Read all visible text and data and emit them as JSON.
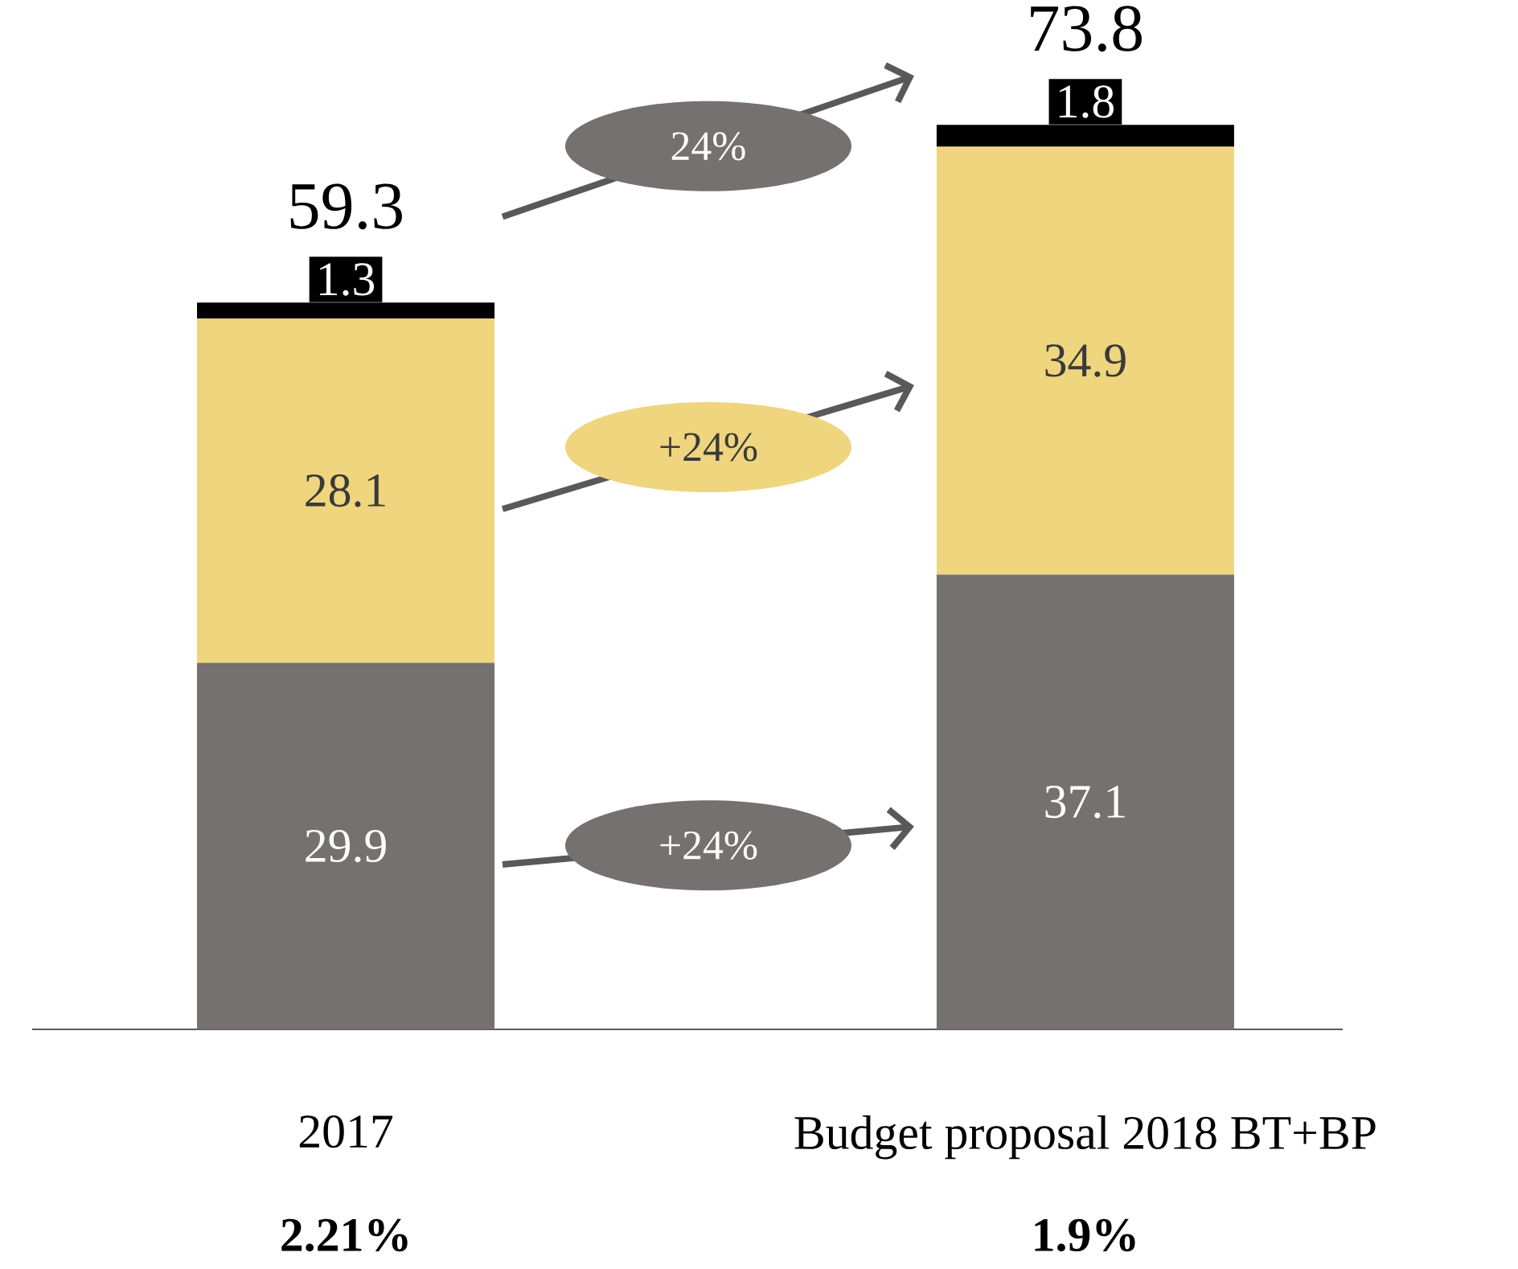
{
  "chart_data": {
    "type": "bar",
    "stacked": true,
    "categories": [
      "2017",
      "Budget proposal 2018 BT+BP"
    ],
    "series": [
      {
        "color": "#757170",
        "values": [
          29.9,
          37.1
        ]
      },
      {
        "color": "#efd57e",
        "values": [
          28.1,
          34.9
        ]
      },
      {
        "color": "#000000",
        "values": [
          1.3,
          1.8
        ]
      }
    ],
    "data_labels": true,
    "totals": [
      "59.3",
      "73.8"
    ],
    "annotations": [
      "+24%",
      "+24%",
      "24%",
      "2.21%",
      "1.9%"
    ]
  }
}
